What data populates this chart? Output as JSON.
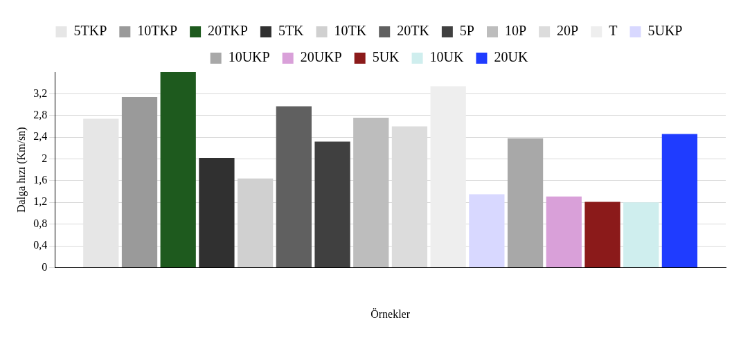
{
  "chart_data": {
    "type": "bar",
    "xlabel": "Örnekler",
    "ylabel": "Dalga hızı (Km/sn)",
    "categories": [
      null
    ],
    "series": [
      {
        "name": "5TKP",
        "color": "#e6e6e6",
        "values": [
          2.74
        ]
      },
      {
        "name": "10TKP",
        "color": "#9a9a9a",
        "values": [
          3.14
        ]
      },
      {
        "name": "20TKP",
        "color": "#1e5a1e",
        "values": [
          3.6
        ]
      },
      {
        "name": "5TK",
        "color": "#303030",
        "values": [
          2.02
        ]
      },
      {
        "name": "10TK",
        "color": "#d0d0d0",
        "values": [
          1.64
        ]
      },
      {
        "name": "20TK",
        "color": "#606060",
        "values": [
          2.97
        ]
      },
      {
        "name": "5P",
        "color": "#404040",
        "values": [
          2.32
        ]
      },
      {
        "name": "10P",
        "color": "#bdbdbd",
        "values": [
          2.76
        ]
      },
      {
        "name": "20P",
        "color": "#dcdcdc",
        "values": [
          2.6
        ]
      },
      {
        "name": "T",
        "color": "#eeeeee",
        "values": [
          3.34
        ]
      },
      {
        "name": "5UKP",
        "color": "#d8d8ff",
        "values": [
          1.35
        ]
      },
      {
        "name": "10UKP",
        "color": "#a8a8a8",
        "values": [
          2.38
        ]
      },
      {
        "name": "20UKP",
        "color": "#d9a0d9",
        "values": [
          1.31
        ]
      },
      {
        "name": "5UK",
        "color": "#8b1a1a",
        "values": [
          1.21
        ]
      },
      {
        "name": "10UK",
        "color": "#cfeeee",
        "values": [
          1.2
        ]
      },
      {
        "name": "20UK",
        "color": "#1f3cff",
        "values": [
          2.46
        ]
      }
    ],
    "ylim": [
      0,
      3.6
    ],
    "yticks": [
      0,
      {
        "value": 0.4,
        "label": "0,4"
      },
      {
        "value": 0.8,
        "label": "0,8"
      },
      {
        "value": 1.2,
        "label": "1,2"
      },
      {
        "value": 1.6,
        "label": "1,6"
      },
      2,
      {
        "value": 2.4,
        "label": "2,4"
      },
      {
        "value": 2.8,
        "label": "2,8"
      },
      {
        "value": 3.2,
        "label": "3,2"
      }
    ],
    "grid": "y",
    "legend": "top"
  }
}
